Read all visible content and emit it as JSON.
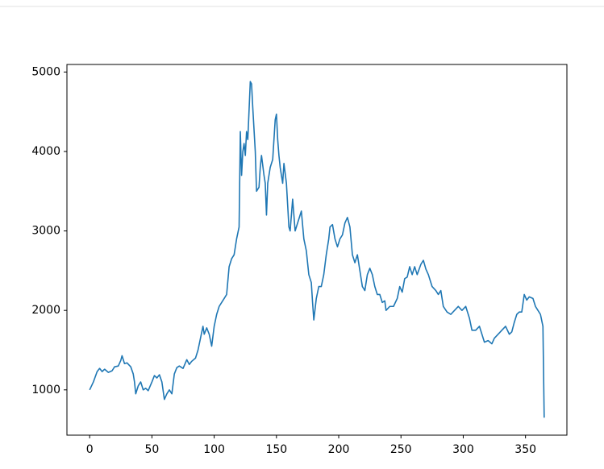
{
  "chart_data": {
    "type": "line",
    "color": "#1f77b4",
    "grid": false,
    "xlim": [
      -18.25,
      383.25
    ],
    "ylim": [
      430,
      5095
    ],
    "xticks": [
      0,
      50,
      100,
      150,
      200,
      250,
      300,
      350
    ],
    "yticks": [
      1000,
      2000,
      3000,
      4000,
      5000
    ],
    "x": [
      0,
      3,
      6,
      8,
      10,
      12,
      15,
      18,
      20,
      23,
      25,
      26,
      28,
      30,
      33,
      35,
      36,
      37,
      39,
      41,
      43,
      45,
      47,
      50,
      52,
      54,
      56,
      58,
      60,
      62,
      64,
      66,
      68,
      70,
      72,
      75,
      78,
      80,
      82,
      85,
      87,
      89,
      91,
      92,
      94,
      96,
      98,
      100,
      102,
      104,
      106,
      108,
      110,
      112,
      114,
      116,
      118,
      120,
      121,
      122,
      123,
      124,
      125,
      126,
      127,
      129,
      130,
      131,
      133,
      134,
      136,
      137,
      138,
      140,
      141,
      142,
      143,
      145,
      147,
      149,
      150,
      151,
      152,
      153,
      155,
      156,
      158,
      160,
      161,
      163,
      165,
      167,
      169,
      170,
      172,
      174,
      176,
      178,
      179,
      180,
      182,
      184,
      186,
      188,
      190,
      192,
      193,
      195,
      197,
      199,
      201,
      203,
      205,
      207,
      209,
      211,
      213,
      215,
      217,
      219,
      221,
      223,
      225,
      227,
      229,
      231,
      233,
      235,
      237,
      238,
      241,
      244,
      247,
      249,
      251,
      253,
      255,
      257,
      259,
      261,
      263,
      266,
      268,
      270,
      272,
      275,
      278,
      280,
      282,
      284,
      287,
      290,
      293,
      296,
      299,
      302,
      305,
      307,
      310,
      313,
      315,
      317,
      320,
      323,
      325,
      328,
      331,
      334,
      337,
      339,
      341,
      343,
      345,
      347,
      349,
      351,
      353,
      356,
      358,
      360,
      362,
      364,
      365
    ],
    "values": [
      1000,
      1100,
      1230,
      1270,
      1230,
      1260,
      1220,
      1240,
      1290,
      1300,
      1370,
      1430,
      1330,
      1340,
      1290,
      1200,
      1100,
      950,
      1050,
      1100,
      1000,
      1020,
      990,
      1100,
      1180,
      1150,
      1190,
      1100,
      880,
      950,
      1000,
      950,
      1200,
      1280,
      1300,
      1270,
      1380,
      1320,
      1360,
      1400,
      1500,
      1650,
      1800,
      1700,
      1780,
      1700,
      1550,
      1800,
      1950,
      2050,
      2100,
      2150,
      2200,
      2550,
      2650,
      2700,
      2900,
      3050,
      4250,
      3700,
      4000,
      4100,
      3950,
      4250,
      4150,
      4880,
      4850,
      4550,
      4000,
      3500,
      3550,
      3800,
      3950,
      3700,
      3600,
      3200,
      3600,
      3800,
      3900,
      4400,
      4470,
      4150,
      3950,
      3800,
      3600,
      3850,
      3600,
      3050,
      3000,
      3400,
      3000,
      3100,
      3200,
      3250,
      2900,
      2750,
      2450,
      2350,
      2100,
      1880,
      2150,
      2300,
      2300,
      2450,
      2700,
      2900,
      3050,
      3080,
      2900,
      2800,
      2900,
      2950,
      3100,
      3170,
      3050,
      2700,
      2600,
      2700,
      2500,
      2300,
      2250,
      2450,
      2530,
      2450,
      2300,
      2200,
      2200,
      2100,
      2120,
      2000,
      2050,
      2050,
      2150,
      2300,
      2230,
      2400,
      2420,
      2550,
      2450,
      2550,
      2450,
      2580,
      2630,
      2520,
      2450,
      2300,
      2250,
      2200,
      2250,
      2050,
      1980,
      1950,
      2000,
      2050,
      2000,
      2050,
      1900,
      1750,
      1750,
      1800,
      1700,
      1600,
      1620,
      1580,
      1650,
      1700,
      1750,
      1800,
      1700,
      1730,
      1850,
      1950,
      1980,
      1980,
      2200,
      2130,
      2170,
      2150,
      2050,
      2000,
      1950,
      1800,
      650
    ]
  }
}
